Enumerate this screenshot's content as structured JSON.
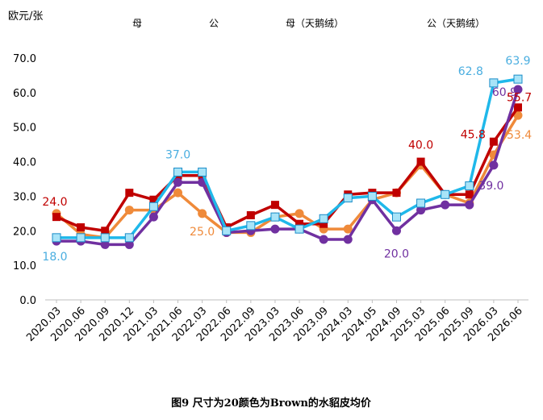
{
  "chart_data": {
    "type": "line",
    "title": "",
    "caption": "图9 尺寸为20颜色为Brown的水貂皮均价",
    "ylabel": "欧元/张",
    "xlabel": "",
    "ylim": [
      0,
      70
    ],
    "yticks": [
      "0.0",
      "10.0",
      "20.0",
      "30.0",
      "40.0",
      "50.0",
      "60.0",
      "70.0"
    ],
    "grid": false,
    "legend_position": "top",
    "categories": [
      "2020.03",
      "2020.06",
      "2020.09",
      "2020.12",
      "2021.03",
      "2021.06",
      "2022.03",
      "2022.06",
      "2022.09",
      "2023.03",
      "2023.06",
      "2023.09",
      "2024.03",
      "2024.05",
      "2024.09",
      "2025.03",
      "2025.06",
      "2025.09",
      "2026.03",
      "2026.06"
    ],
    "series": [
      {
        "name": "母",
        "color": "#EF8A3A",
        "marker": "circle",
        "values": [
          25.0,
          19.0,
          18.0,
          26.0,
          26.0,
          31.0,
          25.0,
          19.5,
          19.5,
          24.0,
          25.0,
          20.5,
          20.5,
          29.0,
          31.0,
          39.0,
          30.5,
          28.0,
          42.0,
          53.4
        ]
      },
      {
        "name": "公",
        "color": "#C00000",
        "marker": "square",
        "values": [
          24.0,
          21.0,
          20.0,
          31.0,
          29.0,
          36.0,
          36.0,
          21.0,
          24.5,
          27.5,
          22.0,
          22.0,
          30.5,
          31.0,
          31.0,
          40.0,
          30.5,
          30.5,
          45.8,
          55.7
        ]
      },
      {
        "name": "母（天鹅绒）",
        "color": "#7030A0",
        "marker": "circle",
        "values": [
          17.0,
          17.0,
          16.0,
          16.0,
          24.0,
          34.0,
          34.0,
          19.5,
          20.0,
          20.5,
          20.5,
          17.5,
          17.5,
          29.0,
          20.0,
          26.0,
          27.5,
          27.5,
          39.0,
          60.9
        ]
      },
      {
        "name": "公（天鹅绒）",
        "color": "#1FB8EA",
        "marker": "square",
        "values": [
          18.0,
          18.0,
          18.0,
          18.0,
          27.0,
          37.0,
          37.0,
          20.0,
          21.5,
          24.0,
          20.5,
          23.5,
          29.5,
          30.0,
          24.0,
          28.0,
          30.5,
          33.0,
          62.8,
          63.9
        ]
      }
    ],
    "data_labels": [
      {
        "text": "24.0",
        "series": 1,
        "index": 0,
        "color": "#C00000"
      },
      {
        "text": "18.0",
        "series": 3,
        "index": 0,
        "color": "#4AAEE0"
      },
      {
        "text": "37.0",
        "series": 3,
        "index": 5,
        "color": "#4AAEE0"
      },
      {
        "text": "25.0",
        "series": 0,
        "index": 6,
        "color": "#EF8A3A"
      },
      {
        "text": "40.0",
        "series": 1,
        "index": 15,
        "color": "#C00000"
      },
      {
        "text": "20.0",
        "series": 2,
        "index": 14,
        "color": "#7030A0"
      },
      {
        "text": "62.8",
        "series": 3,
        "index": 18,
        "color": "#4AAEE0"
      },
      {
        "text": "63.9",
        "series": 3,
        "index": 19,
        "color": "#4AAEE0"
      },
      {
        "text": "60.9",
        "series": 2,
        "index": 19,
        "color": "#7030A0"
      },
      {
        "text": "45.8",
        "series": 1,
        "index": 18,
        "color": "#C00000"
      },
      {
        "text": "55.7",
        "series": 1,
        "index": 19,
        "color": "#C00000"
      },
      {
        "text": "53.4",
        "series": 0,
        "index": 19,
        "color": "#EF8A3A"
      },
      {
        "text": "39.0",
        "series": 2,
        "index": 18,
        "color": "#7030A0"
      }
    ]
  }
}
